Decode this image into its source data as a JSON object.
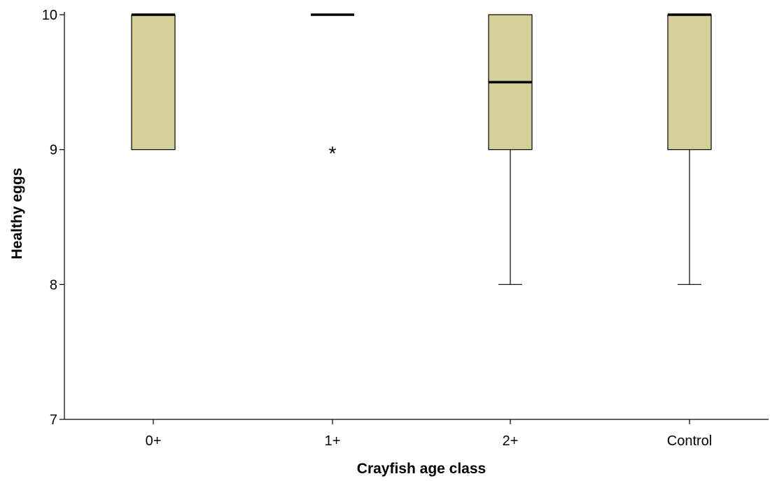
{
  "chart_data": {
    "type": "boxplot",
    "xlabel": "Crayfish age class",
    "ylabel": "Healthy eggs",
    "categories": [
      "0+",
      "1+",
      "2+",
      "Control"
    ],
    "ylim": [
      7,
      10
    ],
    "yticks": [
      7,
      8,
      9,
      10
    ],
    "grid": false,
    "legend": "none",
    "box_color": "#d5d098",
    "outline_color": "#000000",
    "boxes": [
      {
        "category": "0+",
        "min": 9,
        "q1": 9,
        "median": 10,
        "q3": 10,
        "max": 10,
        "outliers": []
      },
      {
        "category": "1+",
        "min": 10,
        "q1": 10,
        "median": 10,
        "q3": 10,
        "max": 10,
        "outliers": [
          9
        ]
      },
      {
        "category": "2+",
        "min": 8,
        "q1": 9,
        "median": 9.5,
        "q3": 10,
        "max": 10,
        "outliers": []
      },
      {
        "category": "Control",
        "min": 8,
        "q1": 9,
        "median": 10,
        "q3": 10,
        "max": 10,
        "outliers": []
      }
    ],
    "outlier_marker": "*"
  }
}
